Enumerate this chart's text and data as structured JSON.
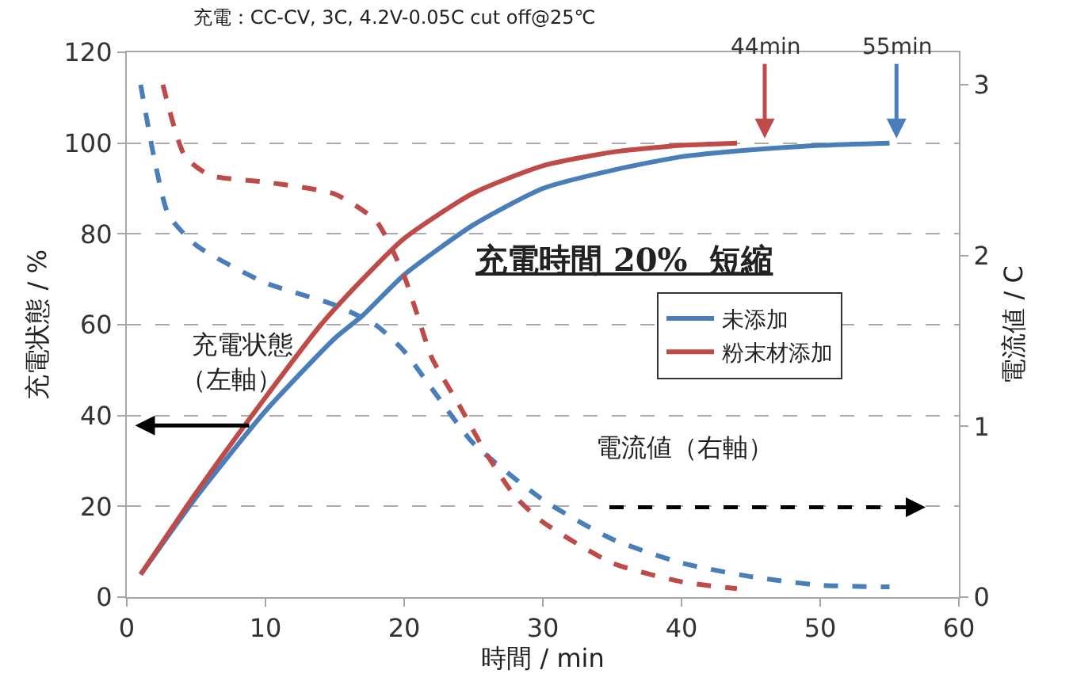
{
  "chart_data": {
    "type": "line",
    "title": "充電：CC-CV, 3C, 4.2V-0.05C cut off@25℃",
    "xlabel": "時間 / min",
    "ylabel": "充電状態 / %",
    "y2label": "電流値 / C",
    "xlim": [
      0,
      60
    ],
    "xticks": [
      0,
      10,
      20,
      30,
      40,
      50,
      60
    ],
    "ylim": [
      0,
      120
    ],
    "yticks": [
      0,
      20,
      40,
      60,
      80,
      100,
      120
    ],
    "y2lim": [
      0,
      3.19
    ],
    "y2ticks": [
      0,
      1,
      2,
      3
    ],
    "grid": "y",
    "legend": "right",
    "marker": "none",
    "series": [
      {
        "name": "未添加",
        "color": "#4a7ebb",
        "line_style": "solid",
        "x": [
          1,
          5,
          10,
          15,
          17,
          20,
          25,
          30,
          35,
          40,
          45,
          50,
          55
        ],
        "values": [
          5,
          22,
          41,
          57,
          62,
          71,
          82,
          90,
          94,
          97,
          98.5,
          99.5,
          100
        ]
      },
      {
        "name": "粉末材添加",
        "color": "#be4b48",
        "line_style": "solid",
        "x": [
          1,
          5,
          10,
          14,
          17,
          20,
          25,
          30,
          35,
          40,
          44
        ],
        "values": [
          5,
          23,
          44,
          60,
          70,
          79,
          89,
          95,
          98,
          99.5,
          100
        ]
      },
      {
        "color": "#4a7ebb",
        "line_style": "dashed",
        "axis": "y2",
        "x": [
          1,
          2,
          3,
          5,
          10,
          15,
          18,
          20,
          22,
          25,
          30,
          35,
          40,
          45,
          50,
          55
        ],
        "values": [
          3.0,
          2.56,
          2.24,
          2.06,
          1.84,
          1.71,
          1.59,
          1.44,
          1.22,
          0.9,
          0.57,
          0.34,
          0.2,
          0.12,
          0.07,
          0.06
        ]
      },
      {
        "color": "#be4b48",
        "line_style": "dashed",
        "axis": "y2",
        "x": [
          2.6,
          4.2,
          6,
          10,
          15,
          18,
          20,
          21,
          22,
          24,
          26,
          28,
          30,
          35,
          40,
          44
        ],
        "values": [
          3.0,
          2.58,
          2.47,
          2.43,
          2.36,
          2.2,
          1.88,
          1.64,
          1.4,
          1.12,
          0.83,
          0.59,
          0.44,
          0.2,
          0.09,
          0.05
        ]
      }
    ],
    "annotations": [
      {
        "text": "44min",
        "x": 46,
        "y": 100
      },
      {
        "text": "55min",
        "x": 55.5,
        "y": 100
      },
      "充電時間 20%  短縮",
      "充電状態",
      "（左軸）",
      "電流値（右軸）"
    ]
  }
}
